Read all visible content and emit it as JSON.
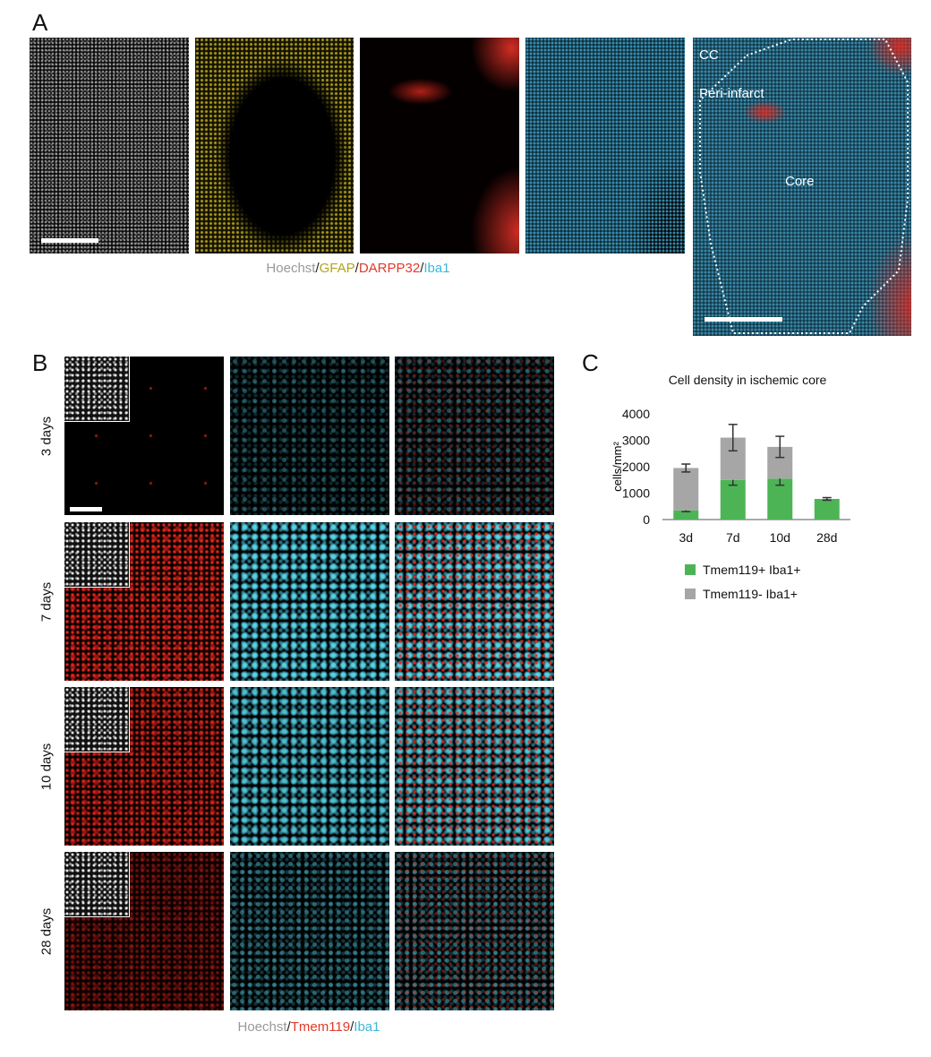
{
  "panel_a": {
    "label": "A",
    "annotations": [
      "CC",
      "Peri-infarct",
      "Core"
    ],
    "caption": [
      {
        "text": "Hoechst",
        "color": "#999999"
      },
      {
        "text": "/",
        "color": "#222222"
      },
      {
        "text": "GFAP",
        "color": "#b5a21a"
      },
      {
        "text": "/",
        "color": "#222222"
      },
      {
        "text": "DARPP32",
        "color": "#e03a2a"
      },
      {
        "text": "/",
        "color": "#222222"
      },
      {
        "text": "Iba1",
        "color": "#3cb8d8"
      }
    ]
  },
  "panel_b": {
    "label": "B",
    "rows": [
      "3 days",
      "7 days",
      "10 days",
      "28 days"
    ],
    "caption": [
      {
        "text": "Hoechst",
        "color": "#999999"
      },
      {
        "text": "/",
        "color": "#222222"
      },
      {
        "text": "Tmem119",
        "color": "#e03a2a"
      },
      {
        "text": "/",
        "color": "#222222"
      },
      {
        "text": "Iba1",
        "color": "#3cb8d8"
      }
    ]
  },
  "panel_c": {
    "label": "C"
  },
  "chart_data": {
    "type": "bar",
    "stacked": true,
    "title": "Cell density in ischemic core",
    "y_label": "cells/mm²",
    "categories": [
      "3d",
      "7d",
      "10d",
      "28d"
    ],
    "series": [
      {
        "name": "Tmem119+ Iba1+",
        "color": "#4db456",
        "values": [
          350,
          1500,
          1550,
          780
        ],
        "errors": [
          50,
          200,
          250,
          50
        ]
      },
      {
        "name": "Tmem119- Iba1+",
        "color": "#a6a6a6",
        "values": [
          1600,
          1600,
          1200,
          0
        ],
        "errors": [
          150,
          500,
          400,
          0
        ]
      }
    ],
    "ylim": [
      0,
      4000
    ],
    "yticks": [
      0,
      1000,
      2000,
      3000,
      4000
    ],
    "legend": "bottom"
  }
}
